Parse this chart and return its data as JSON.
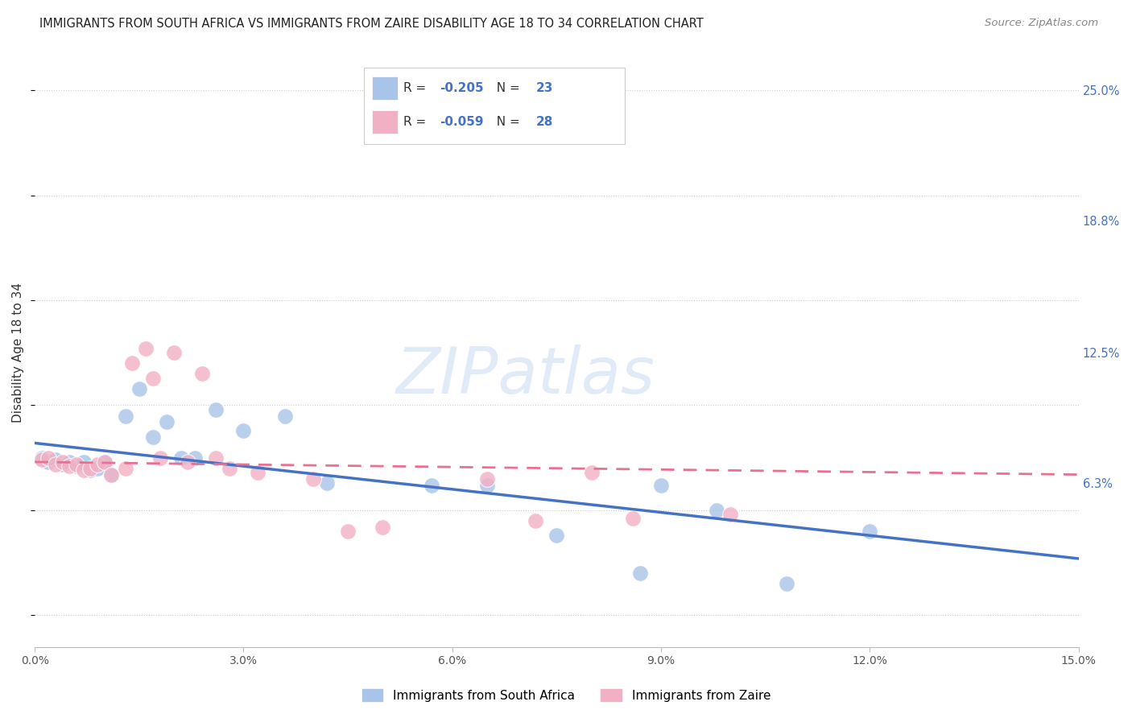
{
  "title": "IMMIGRANTS FROM SOUTH AFRICA VS IMMIGRANTS FROM ZAIRE DISABILITY AGE 18 TO 34 CORRELATION CHART",
  "source": "Source: ZipAtlas.com",
  "ylabel": "Disability Age 18 to 34",
  "ytick_vals": [
    0.0,
    0.063,
    0.125,
    0.188,
    0.25
  ],
  "ytick_labels": [
    "",
    "6.3%",
    "12.5%",
    "18.8%",
    "25.0%"
  ],
  "xtick_vals": [
    0.0,
    0.03,
    0.06,
    0.09,
    0.12,
    0.15
  ],
  "xtick_labels": [
    "0.0%",
    "3.0%",
    "6.0%",
    "9.0%",
    "12.0%",
    "15.0%"
  ],
  "xmin": 0.0,
  "xmax": 0.15,
  "ymin": -0.015,
  "ymax": 0.265,
  "legend1_label_r": "-0.205",
  "legend1_label_n": "23",
  "legend2_label_r": "-0.059",
  "legend2_label_n": "28",
  "legend1_color": "#a8c4e8",
  "legend2_color": "#f2b0c4",
  "line1_color": "#4472c4",
  "line2_color": "#e87090",
  "scatter1_color": "#a8c4e8",
  "scatter2_color": "#f2b0c4",
  "background_color": "#ffffff",
  "grid_color": "#cccccc",
  "title_color": "#222222",
  "axis_color": "#4472c4",
  "watermark_text": "ZIPatlas",
  "south_africa_x": [
    0.001,
    0.002,
    0.003,
    0.004,
    0.005,
    0.006,
    0.007,
    0.008,
    0.009,
    0.01,
    0.011,
    0.013,
    0.015,
    0.017,
    0.019,
    0.021,
    0.023,
    0.026,
    0.03,
    0.036,
    0.042,
    0.057,
    0.065
  ],
  "south_africa_y": [
    0.075,
    0.073,
    0.074,
    0.072,
    0.073,
    0.071,
    0.073,
    0.069,
    0.07,
    0.073,
    0.067,
    0.095,
    0.108,
    0.085,
    0.092,
    0.075,
    0.075,
    0.098,
    0.088,
    0.095,
    0.063,
    0.062,
    0.062
  ],
  "south_africa_x2": [
    0.075,
    0.087,
    0.09,
    0.098,
    0.108,
    0.12
  ],
  "south_africa_y2": [
    0.038,
    0.02,
    0.062,
    0.05,
    0.015,
    0.04
  ],
  "zaire_x": [
    0.001,
    0.002,
    0.003,
    0.004,
    0.005,
    0.006,
    0.007,
    0.008,
    0.009,
    0.01,
    0.011,
    0.013,
    0.014,
    0.016,
    0.017,
    0.018,
    0.02,
    0.022,
    0.024,
    0.026,
    0.028,
    0.032,
    0.04,
    0.045
  ],
  "zaire_y": [
    0.074,
    0.075,
    0.072,
    0.073,
    0.071,
    0.072,
    0.069,
    0.07,
    0.072,
    0.073,
    0.067,
    0.07,
    0.12,
    0.127,
    0.113,
    0.075,
    0.125,
    0.073,
    0.115,
    0.075,
    0.07,
    0.068,
    0.065,
    0.04
  ],
  "zaire_x2": [
    0.05,
    0.065,
    0.072,
    0.08,
    0.086,
    0.1
  ],
  "zaire_y2": [
    0.042,
    0.065,
    0.045,
    0.068,
    0.046,
    0.048
  ],
  "line1_x0": 0.0,
  "line1_x1": 0.15,
  "line1_y0": 0.082,
  "line1_y1": 0.027,
  "line2_x0": 0.0,
  "line2_x1": 0.15,
  "line2_y0": 0.073,
  "line2_y1": 0.067
}
